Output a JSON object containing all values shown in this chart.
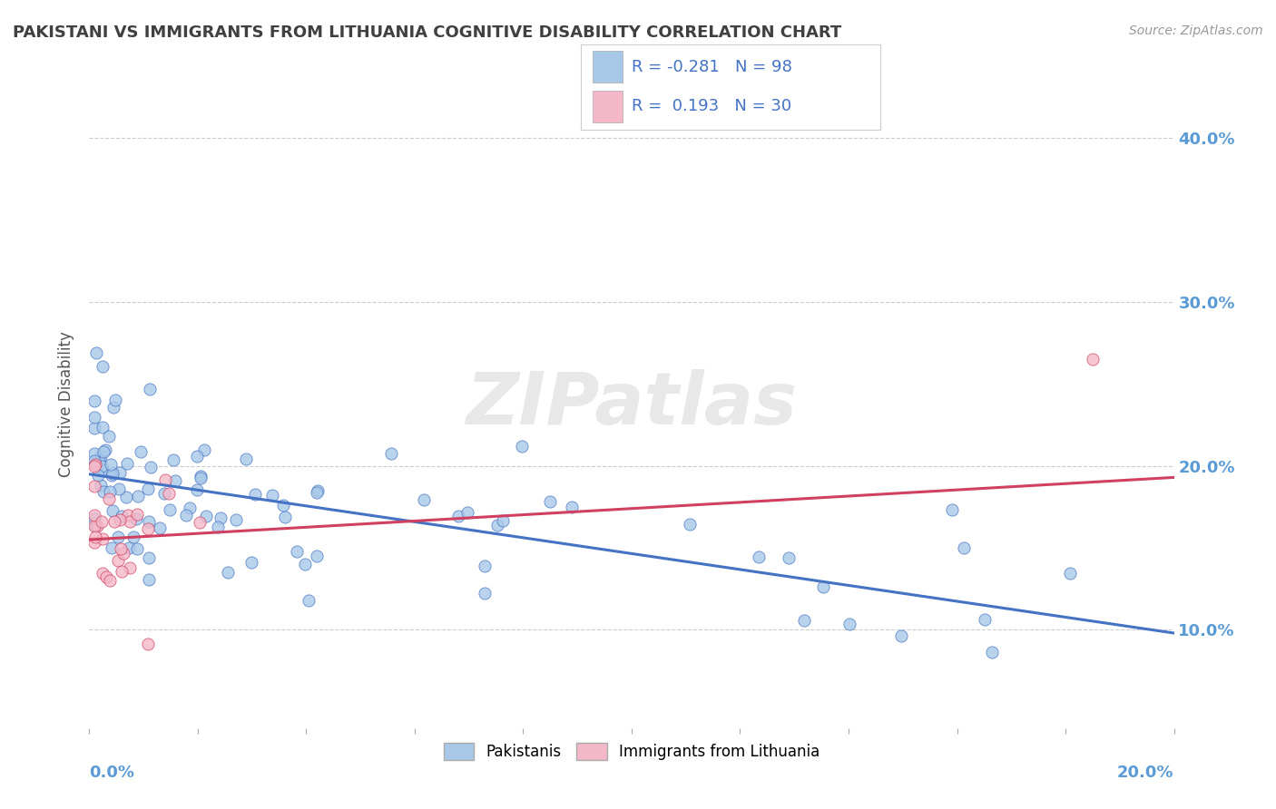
{
  "title": "PAKISTANI VS IMMIGRANTS FROM LITHUANIA COGNITIVE DISABILITY CORRELATION CHART",
  "source": "Source: ZipAtlas.com",
  "ylabel": "Cognitive Disability",
  "yaxis_ticks": [
    0.1,
    0.2,
    0.3,
    0.4
  ],
  "yaxis_labels": [
    "10.0%",
    "20.0%",
    "30.0%",
    "40.0%"
  ],
  "xmin": 0.0,
  "xmax": 0.2,
  "ymin": 0.04,
  "ymax": 0.435,
  "r_blue": -0.281,
  "n_blue": 98,
  "r_pink": 0.193,
  "n_pink": 30,
  "blue_scatter_color": "#a8c8e8",
  "pink_scatter_color": "#f4b8c8",
  "blue_line_color": "#4472c4",
  "pink_line_color": "#d04060",
  "title_color": "#404040",
  "axis_label_color": "#5b9bd5",
  "legend_text_color": "#4472c4",
  "watermark_text": "ZIPatlas",
  "blue_trend_x0": 0.0,
  "blue_trend_x1": 0.2,
  "blue_trend_y0": 0.195,
  "blue_trend_y1": 0.098,
  "pink_trend_x0": 0.0,
  "pink_trend_x1": 0.2,
  "pink_trend_y0": 0.155,
  "pink_trend_y1": 0.193
}
